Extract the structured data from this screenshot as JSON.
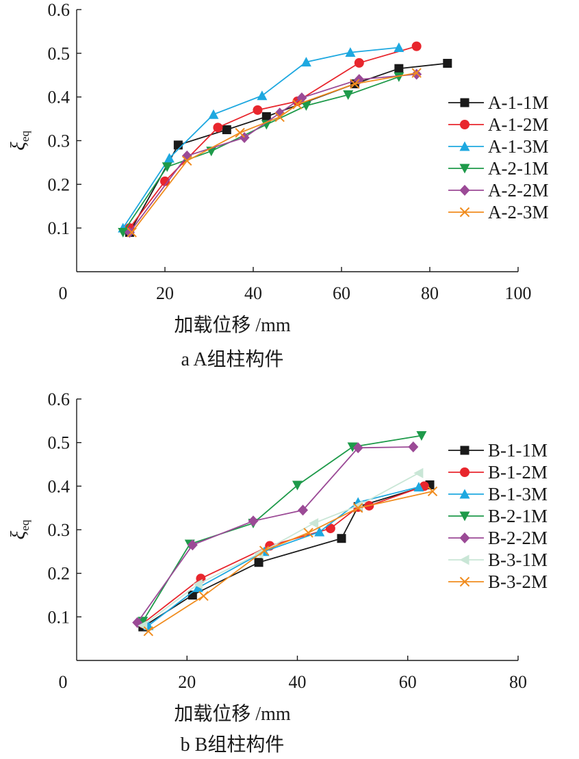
{
  "chart_data": [
    {
      "type": "line",
      "title": "",
      "caption": "a  A组柱构件",
      "xlabel": "加载位移 /mm",
      "ylabel_main": "ξ",
      "ylabel_sub": "eq",
      "xlim": [
        0,
        100
      ],
      "ylim": [
        0,
        0.6
      ],
      "xticks": [
        "0",
        "20",
        "40",
        "60",
        "80",
        "100"
      ],
      "yticks": [
        "0.1",
        "0.2",
        "0.3",
        "0.4",
        "0.5",
        "0.6"
      ],
      "legend_position": "right",
      "series": [
        {
          "name": "A-1-1M",
          "color": "#1a1a1a",
          "marker": "square",
          "x": [
            12,
            23,
            34,
            43,
            63,
            73,
            84
          ],
          "y": [
            0.09,
            0.29,
            0.325,
            0.355,
            0.43,
            0.465,
            0.477
          ]
        },
        {
          "name": "A-1-2M",
          "color": "#e8262d",
          "marker": "circle",
          "x": [
            12,
            20,
            32,
            41,
            50,
            64,
            77
          ],
          "y": [
            0.1,
            0.207,
            0.33,
            0.37,
            0.39,
            0.478,
            0.516
          ]
        },
        {
          "name": "A-1-3M",
          "color": "#1ea8e0",
          "marker": "triangle-up",
          "x": [
            10.5,
            21,
            31,
            42,
            52,
            62,
            73
          ],
          "y": [
            0.1,
            0.26,
            0.36,
            0.403,
            0.48,
            0.502,
            0.513
          ]
        },
        {
          "name": "A-2-1M",
          "color": "#1e9a4a",
          "marker": "triangle-down",
          "x": [
            10.5,
            20.5,
            30.5,
            43,
            52,
            61.5,
            73
          ],
          "y": [
            0.09,
            0.24,
            0.276,
            0.337,
            0.38,
            0.405,
            0.446
          ]
        },
        {
          "name": "A-2-2M",
          "color": "#9b4a96",
          "marker": "diamond",
          "x": [
            12,
            25,
            38,
            46,
            51,
            64,
            77
          ],
          "y": [
            0.09,
            0.265,
            0.307,
            0.363,
            0.398,
            0.44,
            0.452
          ]
        },
        {
          "name": "A-2-3M",
          "color": "#f08c1e",
          "marker": "x",
          "x": [
            12.5,
            25,
            37,
            46,
            50,
            63,
            77
          ],
          "y": [
            0.09,
            0.254,
            0.318,
            0.354,
            0.383,
            0.43,
            0.455
          ]
        }
      ]
    },
    {
      "type": "line",
      "title": "",
      "caption": "b  B组柱构件",
      "xlabel": "加载位移 /mm",
      "ylabel_main": "ξ",
      "ylabel_sub": "eq",
      "xlim": [
        0,
        80
      ],
      "ylim": [
        0,
        0.6
      ],
      "xticks": [
        "0",
        "20",
        "40",
        "60",
        "80"
      ],
      "yticks": [
        "0.1",
        "0.2",
        "0.3",
        "0.4",
        "0.5",
        "0.6"
      ],
      "legend_position": "right",
      "series": [
        {
          "name": "B-1-1M",
          "color": "#1a1a1a",
          "marker": "square",
          "x": [
            12,
            21,
            33,
            48,
            51,
            64
          ],
          "y": [
            0.077,
            0.15,
            0.225,
            0.28,
            0.353,
            0.403
          ]
        },
        {
          "name": "B-1-2M",
          "color": "#e8262d",
          "marker": "circle",
          "x": [
            12,
            22.5,
            35,
            46,
            51,
            53,
            63
          ],
          "y": [
            0.085,
            0.188,
            0.263,
            0.303,
            0.352,
            0.355,
            0.4
          ]
        },
        {
          "name": "B-1-3M",
          "color": "#1ea8e0",
          "marker": "triangle-up",
          "x": [
            13,
            22,
            34,
            44,
            51,
            62
          ],
          "y": [
            0.08,
            0.167,
            0.25,
            0.295,
            0.363,
            0.398
          ]
        },
        {
          "name": "B-2-1M",
          "color": "#1e9a4a",
          "marker": "triangle-down",
          "x": [
            12,
            20.5,
            32,
            40,
            50,
            62.5
          ],
          "y": [
            0.09,
            0.267,
            0.315,
            0.402,
            0.49,
            0.516
          ]
        },
        {
          "name": "B-2-2M",
          "color": "#9b4a96",
          "marker": "diamond",
          "x": [
            11,
            21,
            32,
            41,
            51,
            61
          ],
          "y": [
            0.087,
            0.265,
            0.32,
            0.345,
            0.488,
            0.49
          ]
        },
        {
          "name": "B-3-1M",
          "color": "#c9e6d6",
          "marker": "triangle-left",
          "x": [
            12,
            22,
            33,
            43,
            51,
            62
          ],
          "y": [
            0.08,
            0.175,
            0.245,
            0.315,
            0.355,
            0.43
          ]
        },
        {
          "name": "B-3-2M",
          "color": "#f08c1e",
          "marker": "x",
          "x": [
            13,
            23,
            34,
            42,
            51,
            64.5
          ],
          "y": [
            0.067,
            0.148,
            0.252,
            0.293,
            0.35,
            0.388
          ]
        }
      ]
    }
  ]
}
